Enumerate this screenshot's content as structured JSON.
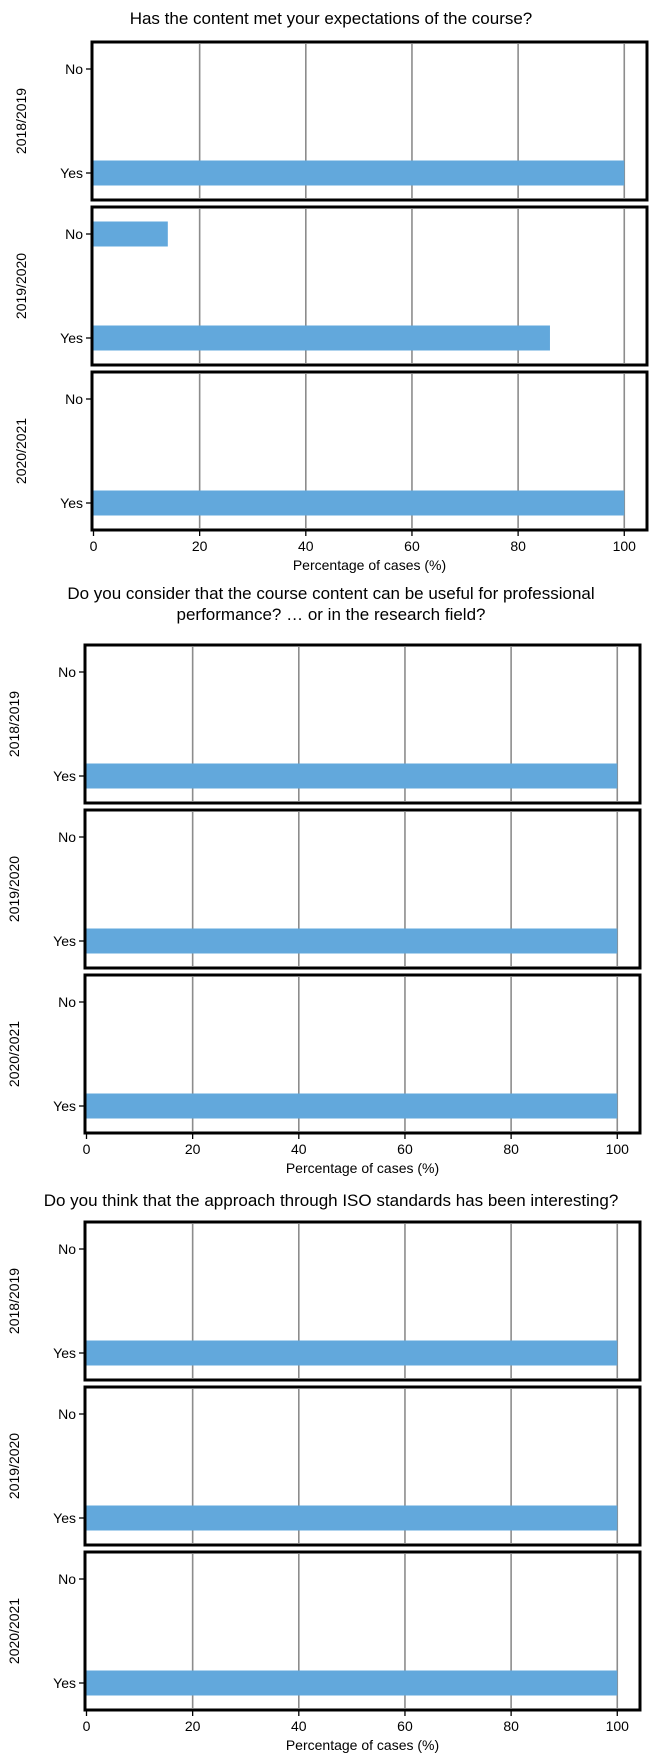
{
  "chart_data": [
    {
      "type": "bar",
      "orientation": "horizontal",
      "title": "Has the content met your expectations of the course?",
      "xlabel": "Percentage of cases (%)",
      "xlim": [
        0,
        104
      ],
      "xticks": [
        "0",
        "20",
        "40",
        "60",
        "80",
        "100"
      ],
      "categories": [
        "No",
        "Yes"
      ],
      "grid": true,
      "color": "#62a8dc",
      "panels": [
        {
          "label": "2018/2019",
          "values": [
            0,
            100
          ]
        },
        {
          "label": "2019/2020",
          "values": [
            14,
            86
          ]
        },
        {
          "label": "2020/2021",
          "values": [
            0,
            100
          ]
        }
      ]
    },
    {
      "type": "bar",
      "orientation": "horizontal",
      "title": "Do you consider that the course content can be useful for professional\nperformance? … or in the research field?",
      "xlabel": "Percentage of cases (%)",
      "xlim": [
        0,
        104
      ],
      "xticks": [
        "0",
        "20",
        "40",
        "60",
        "80",
        "100"
      ],
      "categories": [
        "No",
        "Yes"
      ],
      "grid": true,
      "color": "#62a8dc",
      "panels": [
        {
          "label": "2018/2019",
          "values": [
            0,
            100
          ]
        },
        {
          "label": "2019/2020",
          "values": [
            0,
            100
          ]
        },
        {
          "label": "2020/2021",
          "values": [
            0,
            100
          ]
        }
      ]
    },
    {
      "type": "bar",
      "orientation": "horizontal",
      "title": "Do you think that the approach through ISO standards has been interesting?",
      "xlabel": "Percentage of cases (%)",
      "xlim": [
        0,
        104
      ],
      "xticks": [
        "0",
        "20",
        "40",
        "60",
        "80",
        "100"
      ],
      "categories": [
        "No",
        "Yes"
      ],
      "grid": true,
      "color": "#62a8dc",
      "panels": [
        {
          "label": "2018/2019",
          "values": [
            0,
            100
          ]
        },
        {
          "label": "2019/2020",
          "values": [
            0,
            100
          ]
        },
        {
          "label": "2020/2021",
          "values": [
            0,
            100
          ]
        }
      ]
    }
  ]
}
